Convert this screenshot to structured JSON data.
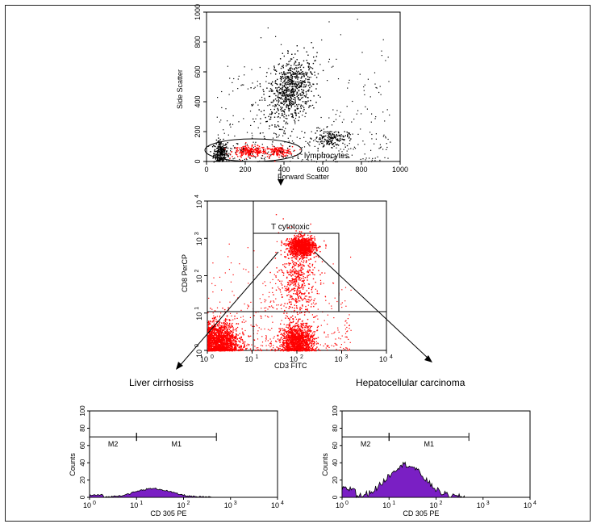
{
  "scatter_top": {
    "xlabel": "Forward Scatter",
    "ylabel": "Side Scatter",
    "x_ticks": [
      "0",
      "200",
      "400",
      "600",
      "800",
      "1000"
    ],
    "y_ticks": [
      "0",
      "200",
      "400",
      "600",
      "800",
      "1000"
    ],
    "gate_label": "lymphocytes",
    "xlim": [
      0,
      1000
    ],
    "ylim": [
      0,
      1000
    ],
    "clusters": [
      {
        "name": "debris",
        "x": 70,
        "y": 60,
        "color": "#000000"
      },
      {
        "name": "lymphocytes-a",
        "x": 220,
        "y": 70,
        "color": "#ff0000"
      },
      {
        "name": "lymphocytes-b",
        "x": 370,
        "y": 70,
        "color": "#ff0000"
      },
      {
        "name": "granulocytes",
        "x": 430,
        "y": 480,
        "color": "#000000"
      },
      {
        "name": "monocytes",
        "x": 640,
        "y": 160,
        "color": "#000000"
      }
    ]
  },
  "scatter_mid": {
    "xlabel": "CD3 FITC",
    "ylabel": "CD8 PerCP",
    "x_ticks": [
      "10",
      "10",
      "10",
      "10",
      "10"
    ],
    "x_exp": [
      "0",
      "1",
      "2",
      "3",
      "4"
    ],
    "y_ticks": [
      "10",
      "10",
      "10",
      "10",
      "10"
    ],
    "y_exp": [
      "0",
      "1",
      "2",
      "3",
      "4"
    ],
    "gate_label": "T cytotoxic",
    "scale": "log",
    "xlim": [
      1,
      10000
    ],
    "ylim": [
      1,
      10000
    ]
  },
  "histograms": [
    {
      "title": "Liver cirrhosiss",
      "xlabel": "CD 305 PE",
      "ylabel": "Counts",
      "y_ticks": [
        "0",
        "20",
        "40",
        "60",
        "80",
        "100"
      ],
      "x_ticks": [
        "10",
        "10",
        "10",
        "10",
        "10"
      ],
      "x_exp": [
        "0",
        "1",
        "2",
        "3",
        "4"
      ],
      "markers": [
        {
          "label": "M2",
          "from": 1,
          "to": 10
        },
        {
          "label": "M1",
          "from": 10,
          "to": 500
        }
      ],
      "marker_y": 70,
      "peak": 10,
      "fill": "#7a1fc4"
    },
    {
      "title": "Hepatocellular carcinoma",
      "xlabel": "CD 305 PE",
      "ylabel": "Counts",
      "y_ticks": [
        "0",
        "20",
        "40",
        "60",
        "80",
        "100"
      ],
      "x_ticks": [
        "10",
        "10",
        "10",
        "10",
        "10"
      ],
      "x_exp": [
        "0",
        "1",
        "2",
        "3",
        "4"
      ],
      "markers": [
        {
          "label": "M2",
          "from": 1,
          "to": 10
        },
        {
          "label": "M1",
          "from": 10,
          "to": 500
        }
      ],
      "marker_y": 70,
      "peak": 38,
      "fill": "#7a1fc4"
    }
  ]
}
